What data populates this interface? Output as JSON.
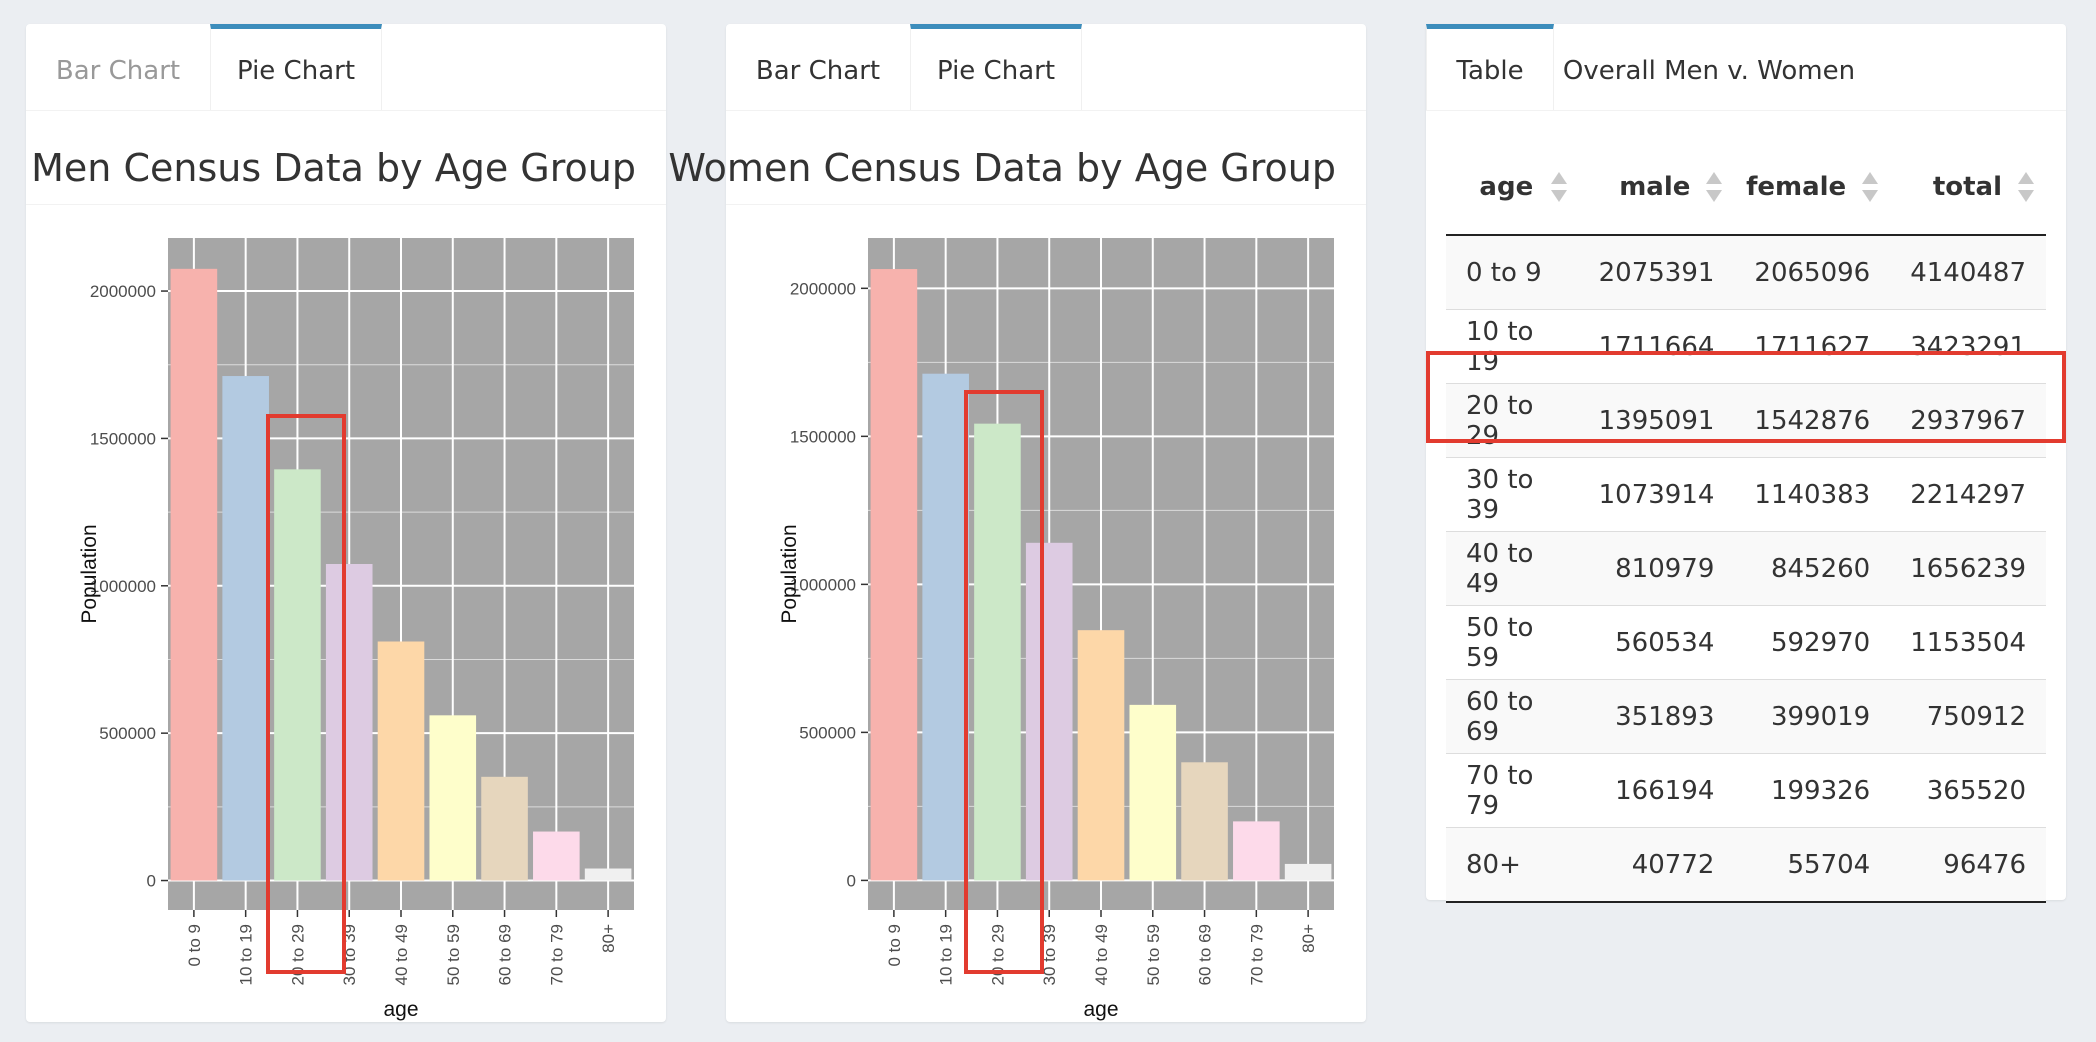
{
  "men_panel": {
    "tabs": [
      {
        "label": "Bar Chart",
        "active": false
      },
      {
        "label": "Pie Chart",
        "active": true
      }
    ],
    "title": "Men Census Data by Age Group"
  },
  "women_panel": {
    "tabs": [
      {
        "label": "Bar Chart",
        "active": false
      },
      {
        "label": "Pie Chart",
        "active": true
      }
    ],
    "title": "Women Census Data by Age Group"
  },
  "table_panel": {
    "tabs": [
      {
        "label": "Table",
        "active": true
      },
      {
        "label": "Overall Men v. Women",
        "active": false
      }
    ],
    "columns": [
      "age",
      "male",
      "female",
      "total"
    ],
    "rows": [
      [
        "0 to 9",
        "2075391",
        "2065096",
        "4140487"
      ],
      [
        "10 to 19",
        "1711664",
        "1711627",
        "3423291"
      ],
      [
        "20 to 29",
        "1395091",
        "1542876",
        "2937967"
      ],
      [
        "30 to 39",
        "1073914",
        "1140383",
        "2214297"
      ],
      [
        "40 to 49",
        "810979",
        "845260",
        "1656239"
      ],
      [
        "50 to 59",
        "560534",
        "592970",
        "1153504"
      ],
      [
        "60 to 69",
        "351893",
        "399019",
        "750912"
      ],
      [
        "70 to 79",
        "166194",
        "199326",
        "365520"
      ],
      [
        "80+",
        "40772",
        "55704",
        "96476"
      ]
    ]
  },
  "colors": {
    "plot_bg": "#a6a6a6",
    "grid": "#ffffff",
    "highlight": "#e23b2f",
    "tab_accent": "#3c8dbc",
    "bars": [
      "#f7b2ad",
      "#b3cae1",
      "#cce8c8",
      "#ddcbe2",
      "#fdd7a8",
      "#fefecb",
      "#e6d6bd",
      "#fddaea",
      "#f0f0f0"
    ]
  },
  "chart_data": [
    {
      "type": "bar",
      "title": "Men Census Data by Age Group",
      "xlabel": "age",
      "ylabel": "Population",
      "categories": [
        "0 to 9",
        "10 to 19",
        "20 to 29",
        "30 to 39",
        "40 to 49",
        "50 to 59",
        "60 to 69",
        "70 to 79",
        "80+"
      ],
      "values": [
        2075391,
        1711664,
        1395091,
        1073914,
        810979,
        560534,
        351893,
        166194,
        40772
      ],
      "yticks": [
        0,
        500000,
        1000000,
        1500000,
        2000000
      ],
      "ytick_labels": [
        "0",
        "500000",
        "1000000",
        "1500000",
        "2000000"
      ],
      "ylim": [
        -100000,
        2180000
      ],
      "highlighted_category": "20 to 29"
    },
    {
      "type": "bar",
      "title": "Women Census Data by Age Group",
      "xlabel": "age",
      "ylabel": "Population",
      "categories": [
        "0 to 9",
        "10 to 19",
        "20 to 29",
        "30 to 39",
        "40 to 49",
        "50 to 59",
        "60 to 69",
        "70 to 79",
        "80+"
      ],
      "values": [
        2065096,
        1711627,
        1542876,
        1140383,
        845260,
        592970,
        399019,
        199326,
        55704
      ],
      "yticks": [
        0,
        500000,
        1000000,
        1500000,
        2000000
      ],
      "ytick_labels": [
        "0",
        "500000",
        "1000000",
        "1500000",
        "2000000"
      ],
      "ylim": [
        -100000,
        2170000
      ],
      "highlighted_category": "20 to 29"
    }
  ]
}
